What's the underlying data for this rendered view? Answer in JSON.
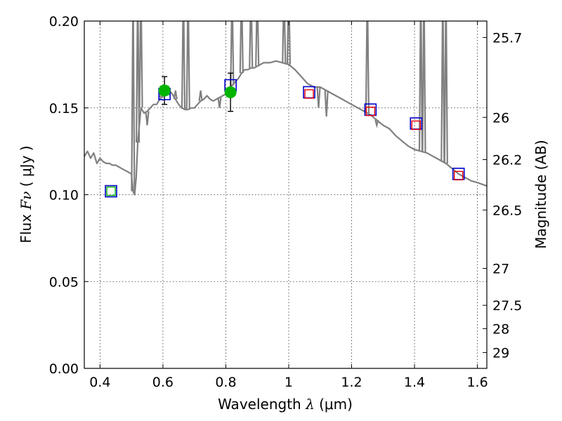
{
  "chart_data": {
    "type": "scatter",
    "xlabel": "Wavelength",
    "xlabel_symbol": "λ",
    "xlabel_unit": "(μm)",
    "ylabel": "Flux",
    "ylabel_symbol": "Fν",
    "ylabel_unit": "( μJy )",
    "y2label": "Magnitude (AB)",
    "xlim": [
      0.35,
      1.63
    ],
    "ylim": [
      0.0,
      0.2
    ],
    "grid": true,
    "xticks": [
      {
        "v": 0.4,
        "label": "0.4"
      },
      {
        "v": 0.6,
        "label": "0.6"
      },
      {
        "v": 0.8,
        "label": "0.8"
      },
      {
        "v": 1.0,
        "label": "1"
      },
      {
        "v": 1.2,
        "label": "1.2"
      },
      {
        "v": 1.4,
        "label": "1.4"
      },
      {
        "v": 1.6,
        "label": "1.6"
      }
    ],
    "yticks": [
      {
        "v": 0.0,
        "label": "0.00"
      },
      {
        "v": 0.05,
        "label": "0.05"
      },
      {
        "v": 0.1,
        "label": "0.10"
      },
      {
        "v": 0.15,
        "label": "0.15"
      },
      {
        "v": 0.2,
        "label": "0.20"
      }
    ],
    "mag_ticks": [
      {
        "mag": 25.7,
        "label": "25.7"
      },
      {
        "mag": 26.0,
        "label": "26"
      },
      {
        "mag": 26.2,
        "label": "26.2"
      },
      {
        "mag": 26.5,
        "label": "26.5"
      },
      {
        "mag": 27.0,
        "label": "27"
      },
      {
        "mag": 27.5,
        "label": "27.5"
      },
      {
        "mag": 28.0,
        "label": "28"
      },
      {
        "mag": 29.0,
        "label": "29"
      }
    ],
    "series": [
      {
        "name": "model_sed",
        "kind": "line",
        "color": "#808080",
        "x": [
          0.35,
          0.36,
          0.37,
          0.38,
          0.39,
          0.4,
          0.41,
          0.42,
          0.43,
          0.44,
          0.45,
          0.46,
          0.47,
          0.48,
          0.49,
          0.5,
          0.505,
          0.51,
          0.515,
          0.52,
          0.53,
          0.54,
          0.55,
          0.56,
          0.57,
          0.58,
          0.59,
          0.6,
          0.61,
          0.62,
          0.63,
          0.64,
          0.65,
          0.66,
          0.67,
          0.68,
          0.69,
          0.7,
          0.71,
          0.72,
          0.73,
          0.74,
          0.75,
          0.76,
          0.77,
          0.78,
          0.79,
          0.8,
          0.81,
          0.82,
          0.83,
          0.84,
          0.85,
          0.86,
          0.87,
          0.88,
          0.89,
          0.9,
          0.92,
          0.94,
          0.96,
          0.98,
          1.0,
          1.02,
          1.04,
          1.06,
          1.08,
          1.1,
          1.12,
          1.14,
          1.16,
          1.18,
          1.2,
          1.22,
          1.24,
          1.26,
          1.28,
          1.3,
          1.32,
          1.34,
          1.36,
          1.38,
          1.4,
          1.42,
          1.44,
          1.46,
          1.48,
          1.5,
          1.52,
          1.54,
          1.56,
          1.58,
          1.6,
          1.63
        ],
        "y": [
          0.122,
          0.125,
          0.121,
          0.124,
          0.118,
          0.121,
          0.119,
          0.118,
          0.118,
          0.117,
          0.117,
          0.116,
          0.115,
          0.114,
          0.113,
          0.112,
          0.102,
          0.1,
          0.11,
          0.13,
          0.15,
          0.147,
          0.148,
          0.15,
          0.152,
          0.152,
          0.155,
          0.157,
          0.158,
          0.16,
          0.158,
          0.155,
          0.152,
          0.15,
          0.149,
          0.149,
          0.15,
          0.15,
          0.152,
          0.154,
          0.155,
          0.157,
          0.155,
          0.154,
          0.155,
          0.156,
          0.157,
          0.158,
          0.16,
          0.163,
          0.165,
          0.167,
          0.17,
          0.172,
          0.172,
          0.173,
          0.173,
          0.174,
          0.176,
          0.176,
          0.177,
          0.176,
          0.175,
          0.172,
          0.168,
          0.164,
          0.162,
          0.162,
          0.16,
          0.158,
          0.156,
          0.154,
          0.152,
          0.15,
          0.148,
          0.146,
          0.143,
          0.14,
          0.138,
          0.134,
          0.131,
          0.128,
          0.126,
          0.125,
          0.124,
          0.122,
          0.12,
          0.118,
          0.115,
          0.112,
          0.11,
          0.108,
          0.107,
          0.105
        ],
        "spikes": [
          {
            "x": 0.505,
            "top": 0.22
          },
          {
            "x": 0.52,
            "top": 0.22
          },
          {
            "x": 0.53,
            "top": 0.22
          },
          {
            "x": 0.55,
            "top": 0.14
          },
          {
            "x": 0.595,
            "top": 0.16
          },
          {
            "x": 0.64,
            "top": 0.16
          },
          {
            "x": 0.665,
            "top": 0.22
          },
          {
            "x": 0.68,
            "top": 0.22
          },
          {
            "x": 0.72,
            "top": 0.16
          },
          {
            "x": 0.78,
            "top": 0.15
          },
          {
            "x": 0.82,
            "top": 0.22
          },
          {
            "x": 0.85,
            "top": 0.22
          },
          {
            "x": 0.88,
            "top": 0.22
          },
          {
            "x": 0.9,
            "top": 0.22
          },
          {
            "x": 0.985,
            "top": 0.22
          },
          {
            "x": 1.0,
            "top": 0.22
          },
          {
            "x": 1.095,
            "top": 0.15
          },
          {
            "x": 1.12,
            "top": 0.145
          },
          {
            "x": 1.25,
            "top": 0.22
          },
          {
            "x": 1.28,
            "top": 0.14
          },
          {
            "x": 1.42,
            "top": 0.22
          },
          {
            "x": 1.43,
            "top": 0.22
          },
          {
            "x": 1.49,
            "top": 0.22
          },
          {
            "x": 1.5,
            "top": 0.22
          }
        ]
      },
      {
        "name": "observed_photometry",
        "kind": "errorbar",
        "color": "#00b400",
        "points": [
          {
            "x": 0.605,
            "y": 0.16,
            "err": 0.008
          },
          {
            "x": 0.815,
            "y": 0.159,
            "err": 0.011
          }
        ]
      },
      {
        "name": "model_bands_blue",
        "kind": "square",
        "color": "#0000cc",
        "points": [
          {
            "x": 0.435,
            "y": 0.102
          },
          {
            "x": 0.605,
            "y": 0.158
          },
          {
            "x": 0.815,
            "y": 0.163
          },
          {
            "x": 1.065,
            "y": 0.159
          },
          {
            "x": 1.26,
            "y": 0.149
          },
          {
            "x": 1.405,
            "y": 0.141
          },
          {
            "x": 1.54,
            "y": 0.112
          }
        ]
      },
      {
        "name": "model_bands_green",
        "kind": "square",
        "color": "#00b400",
        "points": [
          {
            "x": 0.435,
            "y": 0.102
          },
          {
            "x": 0.605,
            "y": 0.16
          }
        ]
      },
      {
        "name": "model_bands_red",
        "kind": "square",
        "color": "#ee0000",
        "points": [
          {
            "x": 1.065,
            "y": 0.158
          },
          {
            "x": 1.26,
            "y": 0.148
          },
          {
            "x": 1.405,
            "y": 0.14
          },
          {
            "x": 1.54,
            "y": 0.111
          }
        ]
      }
    ]
  }
}
